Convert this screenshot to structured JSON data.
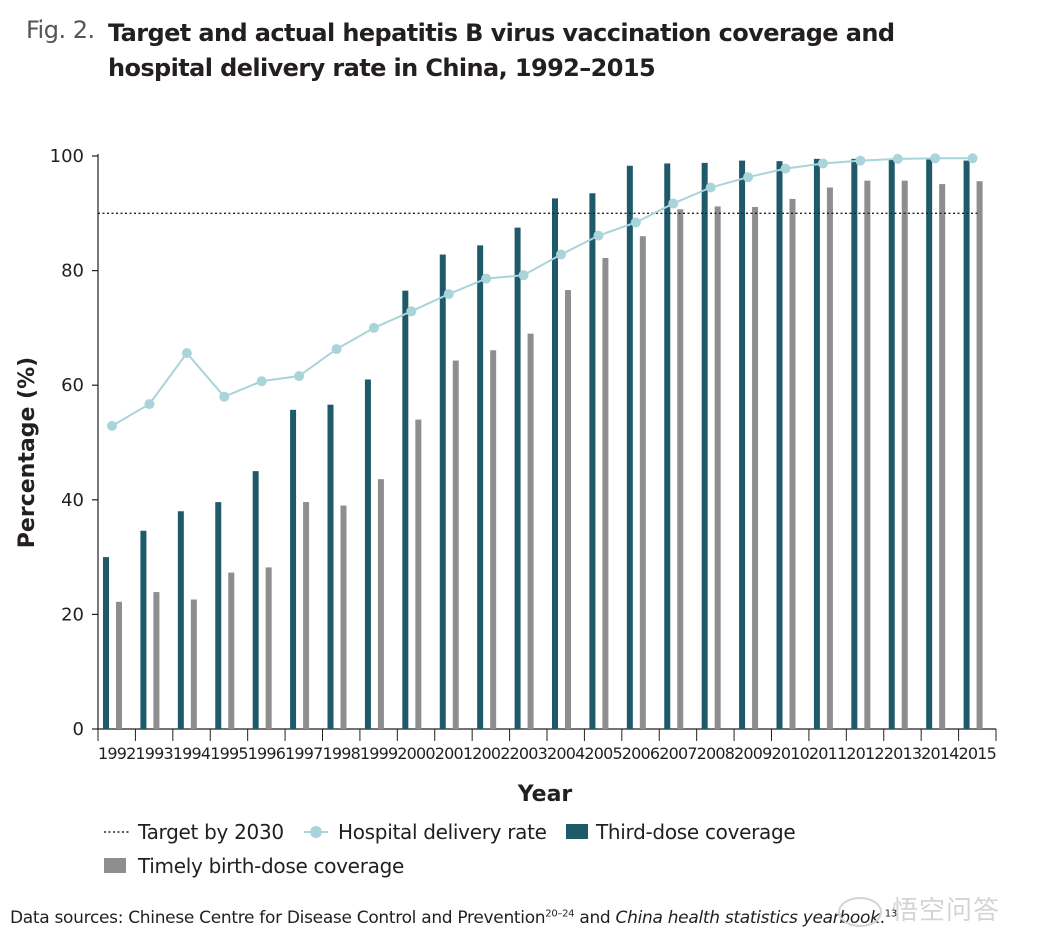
{
  "figure": {
    "label": "Fig. 2.",
    "title": "Target and actual hepatitis B virus vaccination coverage and hospital delivery rate in China, 1992–2015"
  },
  "source": {
    "prefix": "Data sources: Chinese Centre for Disease Control and Prevention",
    "ref1": "20–24",
    "middle": " and ",
    "italic": "China health statistics yearbook",
    "suffix": ".",
    "ref2": "13"
  },
  "watermark": "悟空问答",
  "chart_data": {
    "type": "bar",
    "title": "Target and actual hepatitis B virus vaccination coverage and hospital delivery rate in China, 1992–2015",
    "xlabel": "Year",
    "ylabel": "Percentage (%)",
    "ylim": [
      0,
      100
    ],
    "yticks": [
      0,
      20,
      40,
      60,
      80,
      100
    ],
    "grid": false,
    "categories": [
      "1992",
      "1993",
      "1994",
      "1995",
      "1996",
      "1997",
      "1998",
      "1999",
      "2000",
      "2001",
      "2002",
      "2003",
      "2004",
      "2005",
      "2006",
      "2007",
      "2008",
      "2009",
      "2010",
      "2011",
      "2012",
      "2013",
      "2014",
      "2015"
    ],
    "series": [
      {
        "name": "Third-dose coverage",
        "kind": "bar",
        "color": "#1e5a6a",
        "values": [
          30.0,
          34.6,
          38.0,
          39.6,
          45.0,
          55.7,
          56.6,
          61.0,
          76.5,
          82.8,
          84.4,
          87.5,
          92.6,
          93.5,
          98.3,
          98.7,
          98.8,
          99.2,
          99.1,
          99.5,
          99.5,
          99.4,
          99.4,
          99.2
        ]
      },
      {
        "name": "Timely birth-dose coverage",
        "kind": "bar",
        "color": "#8e8e8e",
        "values": [
          22.2,
          23.9,
          22.6,
          27.3,
          28.2,
          39.6,
          39.0,
          43.6,
          54.0,
          64.3,
          66.1,
          69.0,
          76.6,
          82.2,
          86.0,
          90.7,
          91.2,
          91.1,
          92.5,
          94.5,
          95.7,
          95.7,
          95.1,
          95.6
        ]
      },
      {
        "name": "Hospital delivery rate",
        "kind": "line",
        "color": "#a9d4da",
        "values": [
          52.9,
          56.7,
          65.6,
          58.0,
          60.7,
          61.6,
          66.3,
          70.0,
          72.9,
          75.9,
          78.6,
          79.2,
          82.8,
          86.1,
          88.4,
          91.7,
          94.5,
          96.3,
          97.8,
          98.7,
          99.2,
          99.5,
          99.6,
          99.6
        ]
      }
    ],
    "target": {
      "name": "Target by 2030",
      "value": 90,
      "style": "dotted"
    },
    "legend": {
      "items": [
        "Target by 2030",
        "Hospital delivery rate",
        "Third-dose coverage",
        "Timely birth-dose coverage"
      ],
      "placement": "bottom"
    }
  }
}
